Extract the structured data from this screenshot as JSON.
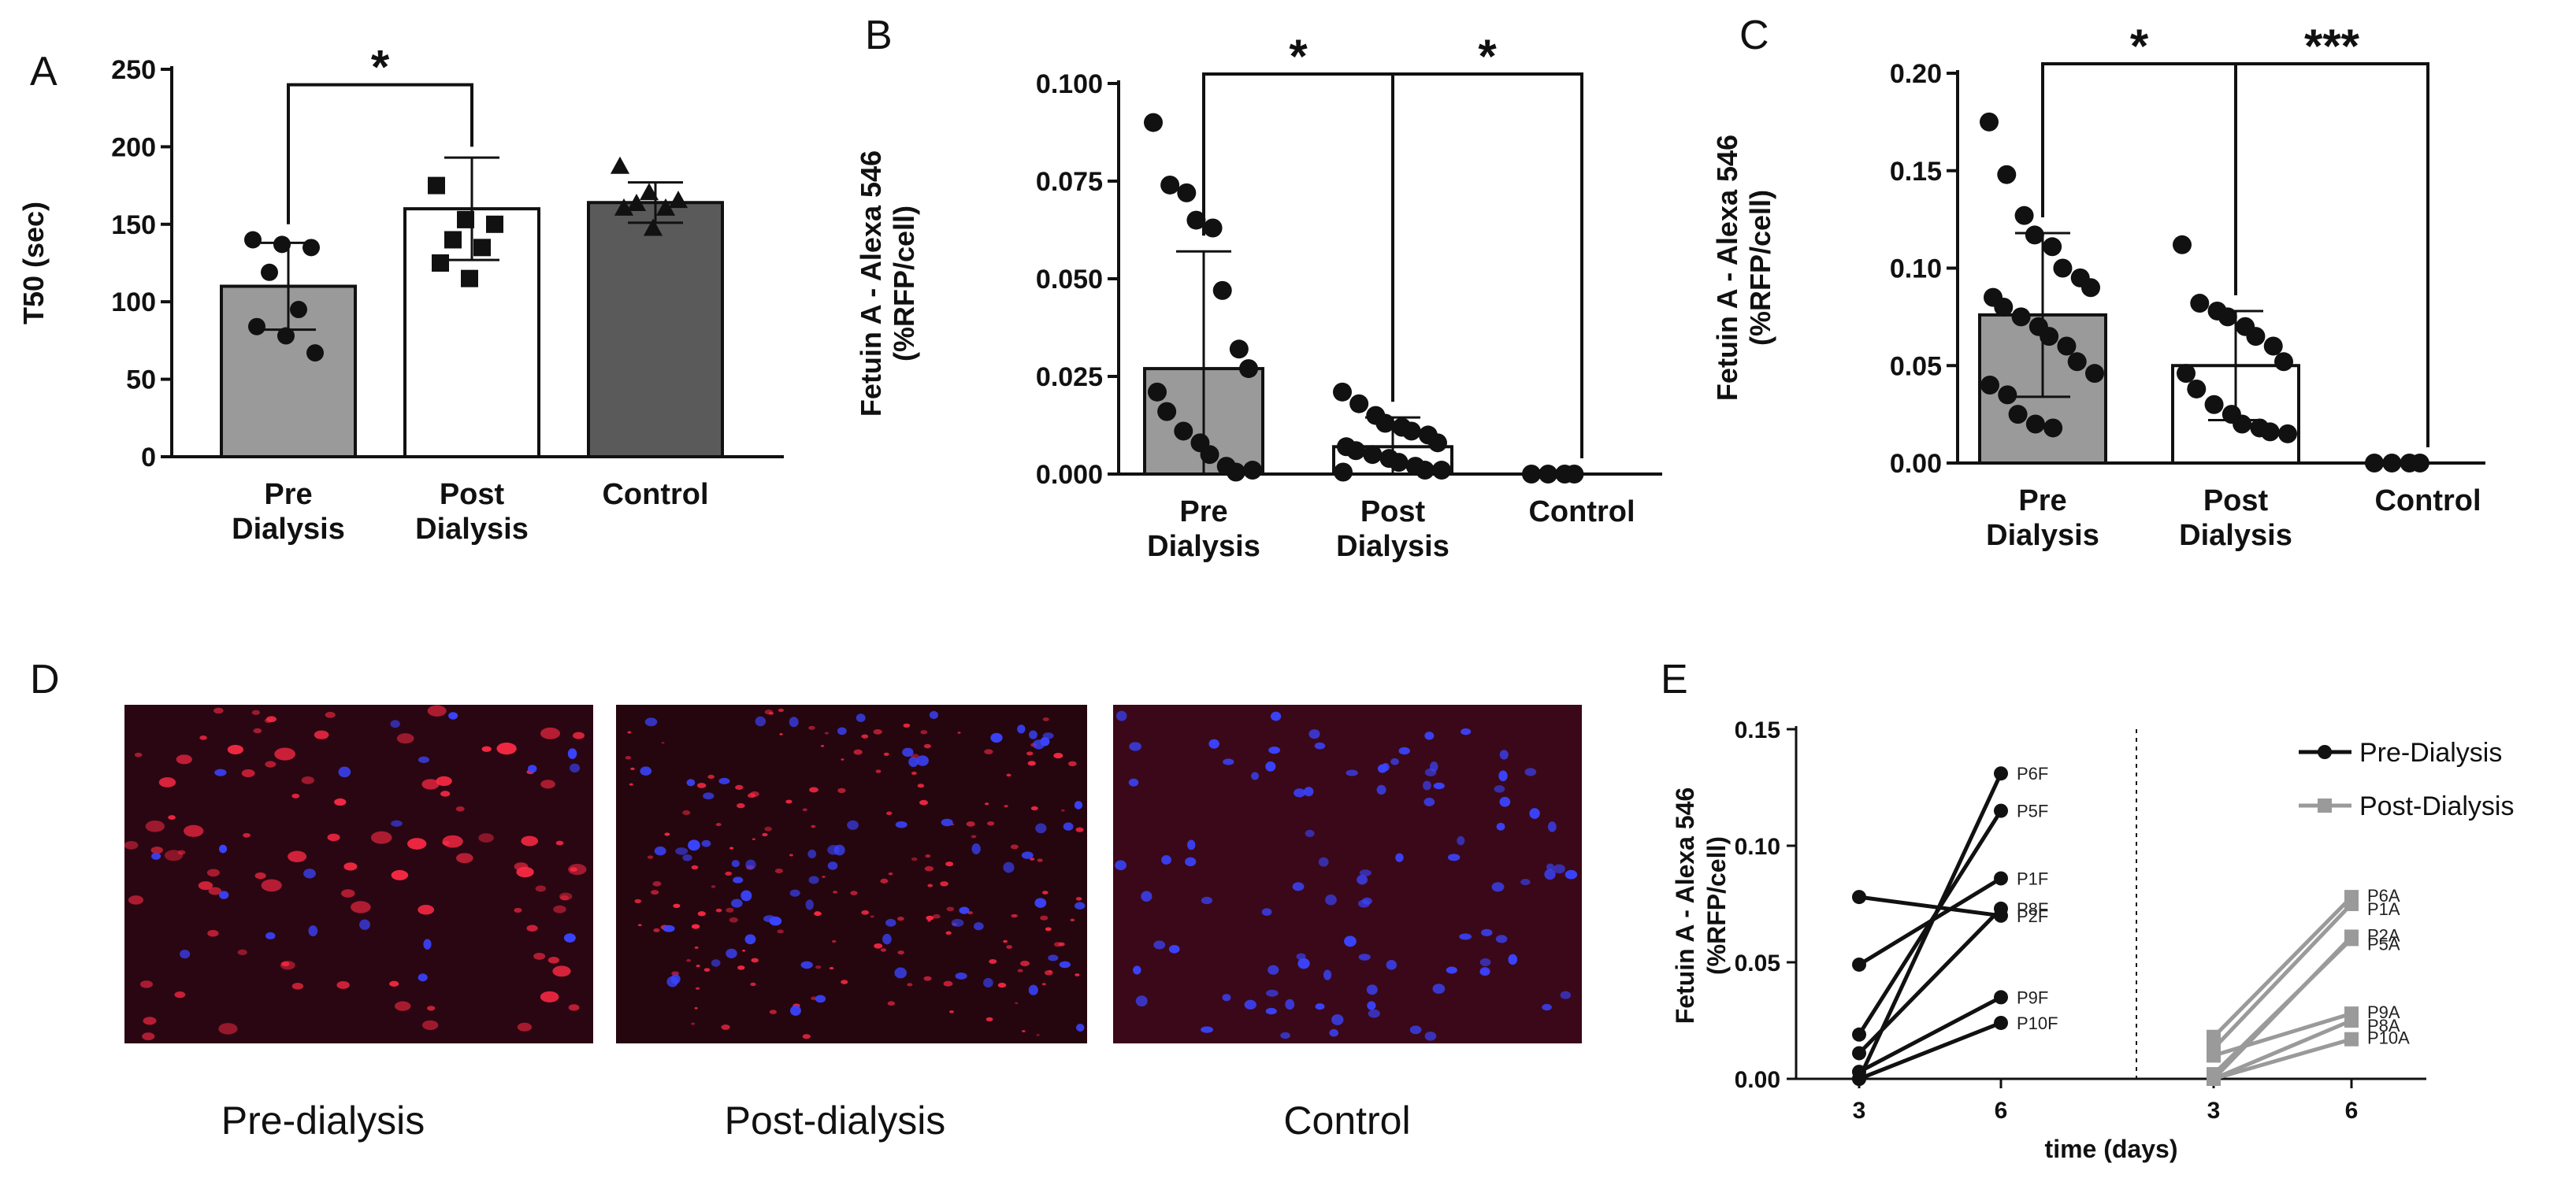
{
  "panels": {
    "A": "A",
    "B": "B",
    "C": "C",
    "D": "D",
    "E": "E"
  },
  "micrograph_captions": [
    "Pre-dialysis",
    "Post-dialysis",
    "Control"
  ],
  "chart_data": [
    {
      "panel": "A",
      "type": "bar",
      "ylabel": "T50 (sec)",
      "ylim": [
        0,
        250
      ],
      "yticks": [
        "0",
        "50",
        "100",
        "150",
        "200",
        "250"
      ],
      "categories": [
        [
          "Pre",
          "Dialysis"
        ],
        [
          "Post",
          "Dialysis"
        ],
        [
          "Control"
        ]
      ],
      "bar_colors": [
        "#9a9a9a",
        "#ffffff",
        "#5a5a5a"
      ],
      "means": [
        110,
        160,
        164
      ],
      "sd": [
        28,
        33,
        13
      ],
      "points": [
        [
          140,
          137,
          135,
          119,
          95,
          84,
          78,
          67
        ],
        [
          175,
          153,
          150,
          140,
          135,
          125,
          115
        ],
        [
          187,
          170,
          165,
          163,
          160,
          160,
          147
        ]
      ],
      "markers": [
        "circle",
        "square",
        "triangle"
      ],
      "significance": [
        {
          "from": 0,
          "to": 1,
          "label": "*",
          "y": 240
        }
      ]
    },
    {
      "panel": "B",
      "type": "bar",
      "ylabel": [
        "Fetuin A - Alexa 546",
        "(%RFP/cell)"
      ],
      "ylim": [
        0,
        0.1
      ],
      "yticks": [
        "0.000",
        "0.025",
        "0.050",
        "0.075",
        "0.100"
      ],
      "categories": [
        [
          "Pre",
          "Dialysis"
        ],
        [
          "Post",
          "Dialysis"
        ],
        [
          "Control"
        ]
      ],
      "bar_colors": [
        "#9a9a9a",
        "#ffffff",
        "#ffffff"
      ],
      "means": [
        0.027,
        0.007,
        0
      ],
      "sd": [
        0.03,
        0.0075,
        0
      ],
      "points": [
        [
          0.09,
          0.074,
          0.072,
          0.065,
          0.063,
          0.047,
          0.032,
          0.027,
          0.021,
          0.016,
          0.011,
          0.008,
          0.005,
          0.002,
          0.0005,
          0.001
        ],
        [
          0.021,
          0.018,
          0.015,
          0.013,
          0.012,
          0.011,
          0.01,
          0.008,
          0.007,
          0.006,
          0.005,
          0.004,
          0.003,
          0.002,
          0.001,
          0.001,
          0.0005
        ],
        [
          0,
          0,
          0,
          0
        ]
      ],
      "markers": [
        "circle",
        "circle",
        "circle"
      ],
      "significance": [
        {
          "from": 0,
          "to": 1,
          "label": "*",
          "y": 0.1
        },
        {
          "from": 1,
          "to": 2,
          "label": "*",
          "y": 0.1
        }
      ]
    },
    {
      "panel": "C",
      "type": "bar",
      "ylabel": [
        "Fetuin A - Alexa 546",
        "(%RFP/cell)"
      ],
      "ylim": [
        0,
        0.2
      ],
      "yticks": [
        "0.00",
        "0.05",
        "0.10",
        "0.15",
        "0.20"
      ],
      "categories": [
        [
          "Pre",
          "Dialysis"
        ],
        [
          "Post",
          "Dialysis"
        ],
        [
          "Control"
        ]
      ],
      "bar_colors": [
        "#9a9a9a",
        "#ffffff",
        "#ffffff"
      ],
      "means": [
        0.076,
        0.05,
        0
      ],
      "sd": [
        0.042,
        0.028,
        0
      ],
      "points": [
        [
          0.175,
          0.148,
          0.127,
          0.117,
          0.111,
          0.1,
          0.095,
          0.09,
          0.085,
          0.08,
          0.075,
          0.07,
          0.065,
          0.06,
          0.052,
          0.046,
          0.04,
          0.035,
          0.025,
          0.02,
          0.018
        ],
        [
          0.112,
          0.082,
          0.078,
          0.075,
          0.07,
          0.065,
          0.06,
          0.052,
          0.046,
          0.038,
          0.03,
          0.025,
          0.02,
          0.018,
          0.016,
          0.015
        ],
        [
          0,
          0,
          0,
          0
        ]
      ],
      "markers": [
        "circle",
        "circle",
        "circle"
      ],
      "significance": [
        {
          "from": 0,
          "to": 1,
          "label": "*",
          "y": 0.2
        },
        {
          "from": 1,
          "to": 2,
          "label": "***",
          "y": 0.2
        }
      ]
    },
    {
      "panel": "E",
      "type": "line",
      "ylabel": [
        "Fetuin A - Alexa 546",
        "(%RFP/cell)"
      ],
      "xlabel": "time (days)",
      "ylim": [
        0,
        0.15
      ],
      "yticks": [
        "0.00",
        "0.05",
        "0.10",
        "0.15"
      ],
      "xticks": [
        "3",
        "6",
        "3",
        "6"
      ],
      "legend": [
        "Pre-Dialysis",
        "Post-Dialysis"
      ],
      "legend_position": "top-right",
      "series": [
        {
          "name": "Pre-Dialysis",
          "color": "#111111",
          "marker": "circle",
          "pairs": [
            {
              "label": "P6F",
              "day3": 0.0,
              "day6": 0.131
            },
            {
              "label": "P5F",
              "day3": 0.019,
              "day6": 0.115
            },
            {
              "label": "P1F",
              "day3": 0.049,
              "day6": 0.086
            },
            {
              "label": "P8F",
              "day3": 0.011,
              "day6": 0.073
            },
            {
              "label": "P2F",
              "day3": 0.078,
              "day6": 0.07
            },
            {
              "label": "P9F",
              "day3": 0.003,
              "day6": 0.035
            },
            {
              "label": "P10F",
              "day3": 0.0,
              "day6": 0.024
            }
          ]
        },
        {
          "name": "Post-Dialysis",
          "color": "#9a9a9a",
          "marker": "square",
          "pairs": [
            {
              "label": "P6A",
              "day3": 0.018,
              "day6": 0.078
            },
            {
              "label": "P1A",
              "day3": 0.013,
              "day6": 0.075
            },
            {
              "label": "P2A",
              "day3": 0.0,
              "day6": 0.061
            },
            {
              "label": "P5A",
              "day3": 0.002,
              "day6": 0.06
            },
            {
              "label": "P9A",
              "day3": 0.01,
              "day6": 0.028
            },
            {
              "label": "P8A",
              "day3": 0.0,
              "day6": 0.025
            },
            {
              "label": "P10A",
              "day3": 0.0,
              "day6": 0.017
            }
          ]
        }
      ]
    }
  ]
}
